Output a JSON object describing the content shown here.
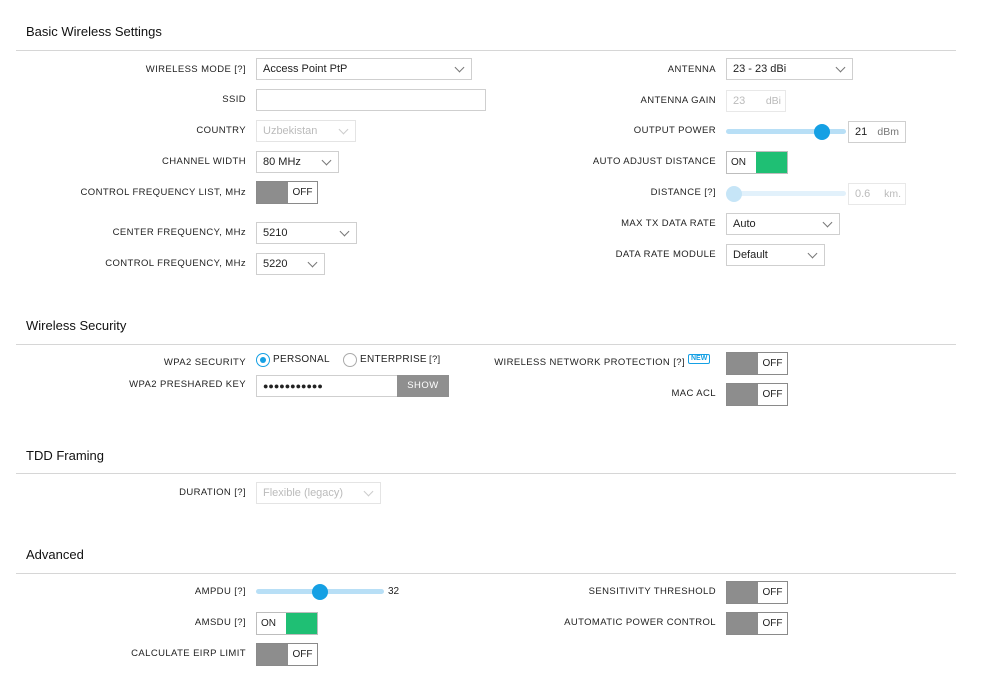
{
  "sections": {
    "basic": "Basic Wireless Settings",
    "security": "Wireless Security",
    "tdd": "TDD Framing",
    "advanced": "Advanced"
  },
  "basic": {
    "wireless_mode_label": "WIRELESS MODE [?]",
    "wireless_mode_value": "Access Point PtP",
    "ssid_label": "SSID",
    "ssid_value": "",
    "country_label": "COUNTRY",
    "country_value": "Uzbekistan",
    "channel_width_label": "CHANNEL WIDTH",
    "channel_width_value": "80 MHz",
    "control_freq_list_label": "CONTROL FREQUENCY LIST, MHz",
    "control_freq_list_toggle": "OFF",
    "center_freq_label": "CENTER FREQUENCY, MHz",
    "center_freq_value": "5210",
    "control_freq_label": "CONTROL FREQUENCY, MHz",
    "control_freq_value": "5220",
    "antenna_label": "ANTENNA",
    "antenna_value": "23 - 23 dBi",
    "antenna_gain_label": "ANTENNA GAIN",
    "antenna_gain_value": "23",
    "antenna_gain_unit": "dBi",
    "output_power_label": "OUTPUT POWER",
    "output_power_value": "21",
    "output_power_unit": "dBm",
    "output_power_level": 0.85,
    "auto_adjust_label": "AUTO ADJUST DISTANCE",
    "auto_adjust_toggle": "ON",
    "distance_label": "DISTANCE [?]",
    "distance_value": "0.6",
    "distance_unit": "km.",
    "distance_level": 0.0,
    "max_tx_label": "MAX TX DATA RATE",
    "max_tx_value": "Auto",
    "data_rate_module_label": "DATA RATE MODULE",
    "data_rate_module_value": "Default"
  },
  "security": {
    "wpa2_label": "WPA2 SECURITY",
    "personal_label": "PERSONAL",
    "enterprise_label": "ENTERPRISE",
    "enterprise_help": "[?]",
    "selected": "PERSONAL",
    "psk_label": "WPA2 PRESHARED KEY",
    "psk_value": "●●●●●●●●●●●",
    "show_label": "SHOW",
    "wnp_label": "WIRELESS NETWORK PROTECTION [?]",
    "wnp_badge": "NEW",
    "wnp_toggle": "OFF",
    "mac_acl_label": "MAC ACL",
    "mac_acl_toggle": "OFF"
  },
  "tdd": {
    "duration_label": "DURATION [?]",
    "duration_value": "Flexible (legacy)"
  },
  "advanced": {
    "ampdu_label": "AMPDU [?]",
    "ampdu_value": "32",
    "ampdu_level": 0.5,
    "amsdu_label": "AMSDU [?]",
    "amsdu_toggle": "ON",
    "eirp_label": "CALCULATE EIRP LIMIT",
    "eirp_toggle": "OFF",
    "sensitivity_label": "SENSITIVITY THRESHOLD",
    "sensitivity_toggle": "OFF",
    "apc_label": "AUTOMATIC POWER CONTROL",
    "apc_toggle": "OFF"
  },
  "colors": {
    "accent": "#15a0e4",
    "on_green": "#1fbf74",
    "toggle_gray": "#8d8d8d"
  }
}
